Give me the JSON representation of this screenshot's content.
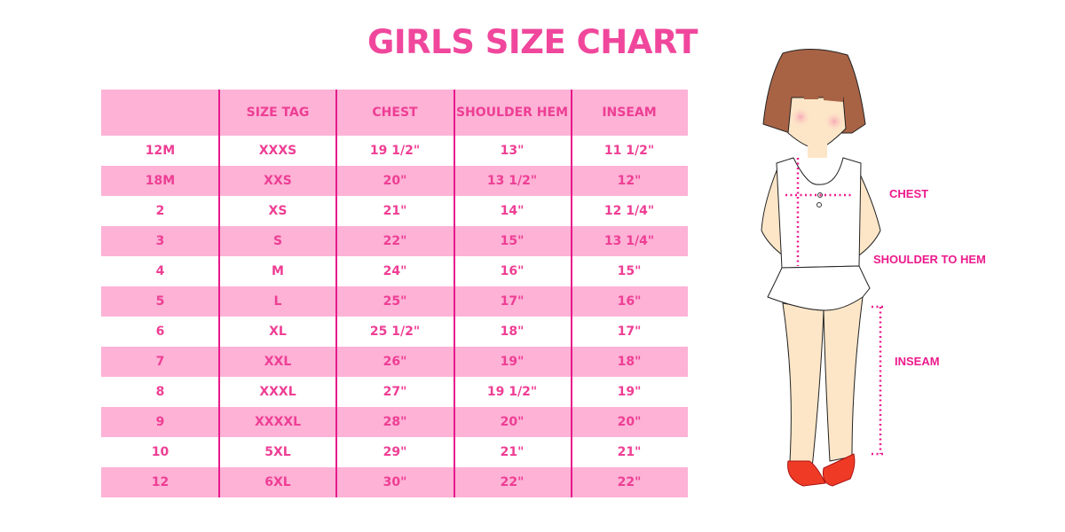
{
  "title": "GIRLS SIZE CHART",
  "table": {
    "headers": [
      "",
      "SIZE TAG",
      "CHEST",
      "SHOULDER HEM",
      "INSEAM"
    ],
    "rows": [
      [
        "12M",
        "XXXS",
        "19 1/2\"",
        "13\"",
        "11 1/2\""
      ],
      [
        "18M",
        "XXS",
        "20\"",
        "13 1/2\"",
        "12\""
      ],
      [
        "2",
        "XS",
        "21\"",
        "14\"",
        "12 1/4\""
      ],
      [
        "3",
        "S",
        "22\"",
        "15\"",
        "13 1/4\""
      ],
      [
        "4",
        "M",
        "24\"",
        "16\"",
        "15\""
      ],
      [
        "5",
        "L",
        "25\"",
        "17\"",
        "16\""
      ],
      [
        "6",
        "XL",
        "25 1/2\"",
        "18\"",
        "17\""
      ],
      [
        "7",
        "XXL",
        "26\"",
        "19\"",
        "18\""
      ],
      [
        "8",
        "XXXL",
        "27\"",
        "19 1/2\"",
        "19\""
      ],
      [
        "9",
        "XXXXL",
        "28\"",
        "20\"",
        "20\""
      ],
      [
        "10",
        "5XL",
        "29\"",
        "21\"",
        "21\""
      ],
      [
        "12",
        "6XL",
        "30\"",
        "22\"",
        "22\""
      ]
    ]
  },
  "figure": {
    "labels": {
      "chest": "CHEST",
      "shoulder": "SHOULDER TO HEM",
      "inseam": "INSEAM"
    }
  },
  "colors": {
    "accent": "#f0479c",
    "row_pink": "#fdb2d6",
    "divider": "#e8198b"
  }
}
